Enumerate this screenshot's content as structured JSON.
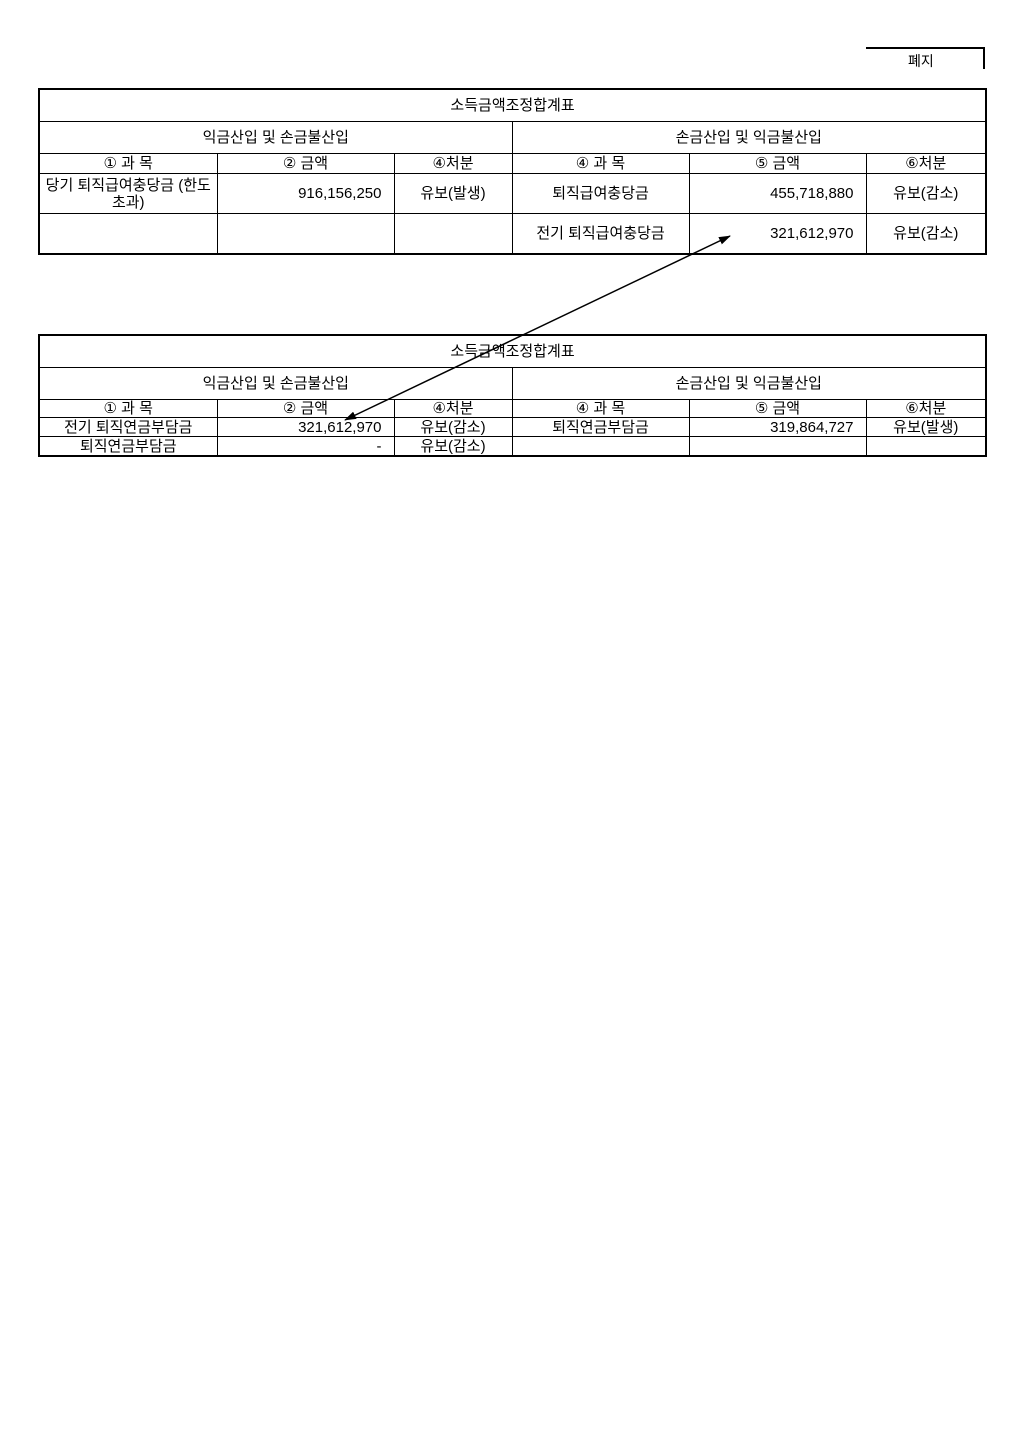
{
  "stamp": "폐지",
  "tables": [
    {
      "title": "소득금액조정합계표",
      "left_section": "익금산입 및 손금불산입",
      "right_section": "손금산입 및 익금불산입",
      "headers": [
        "① 과 목",
        "② 금액",
        "④처분",
        "④ 과 목",
        "⑤ 금액",
        "⑥처분"
      ],
      "rows": [
        [
          "당기 퇴직급여충당금 (한도초과)",
          "916,156,250",
          "유보(발생)",
          "퇴직급여충당금",
          "455,718,880",
          "유보(감소)"
        ],
        [
          "",
          "",
          "",
          "전기 퇴직급여충당금",
          "321,612,970",
          "유보(감소)"
        ]
      ]
    },
    {
      "title": "소득금액조정합계표",
      "left_section": "익금산입 및 손금불산입",
      "right_section": "손금산입 및 익금불산입",
      "headers": [
        "① 과 목",
        "② 금액",
        "④처분",
        "④ 과 목",
        "⑤ 금액",
        "⑥처분"
      ],
      "rows": [
        [
          "전기 퇴직연금부담금",
          "321,612,970",
          "유보(감소)",
          "퇴직연금부담금",
          "319,864,727",
          "유보(발생)"
        ],
        [
          "퇴직연금부담금",
          "-",
          "유보(감소)",
          "",
          "",
          ""
        ]
      ]
    }
  ]
}
